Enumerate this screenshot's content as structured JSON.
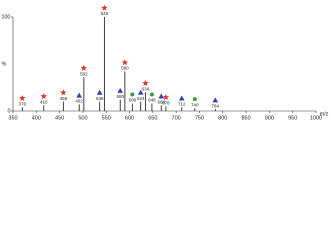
{
  "chart_data": {
    "type": "bar",
    "ylabel": "%",
    "xlabel": "m/z",
    "x": [
      370,
      416,
      458,
      492,
      502,
      536,
      546,
      580,
      590,
      606,
      624,
      634,
      648,
      668,
      678,
      712,
      740,
      784
    ],
    "values": [
      4,
      6,
      10,
      7,
      36,
      10,
      100,
      12,
      42,
      8,
      10,
      20,
      8,
      6,
      5,
      4,
      3,
      2
    ],
    "markers": [
      "star",
      "star",
      "star",
      "triangle",
      "star",
      "triangle",
      "star",
      "triangle",
      "star",
      "circle",
      "triangle",
      "star",
      "circle",
      "triangle",
      "star",
      "triangle",
      "circle",
      "triangle"
    ],
    "marker_colors": {
      "star": "#e8312a",
      "triangle": "#2a3fbf",
      "circle": "#2e9e3e"
    },
    "color": "#111111",
    "xlim": [
      350,
      1000
    ],
    "xticks": [
      350,
      400,
      450,
      500,
      550,
      600,
      650,
      700,
      750,
      800,
      850,
      900,
      950,
      1000
    ],
    "ylim": [
      0,
      100
    ],
    "yticks": [
      0,
      100
    ]
  }
}
